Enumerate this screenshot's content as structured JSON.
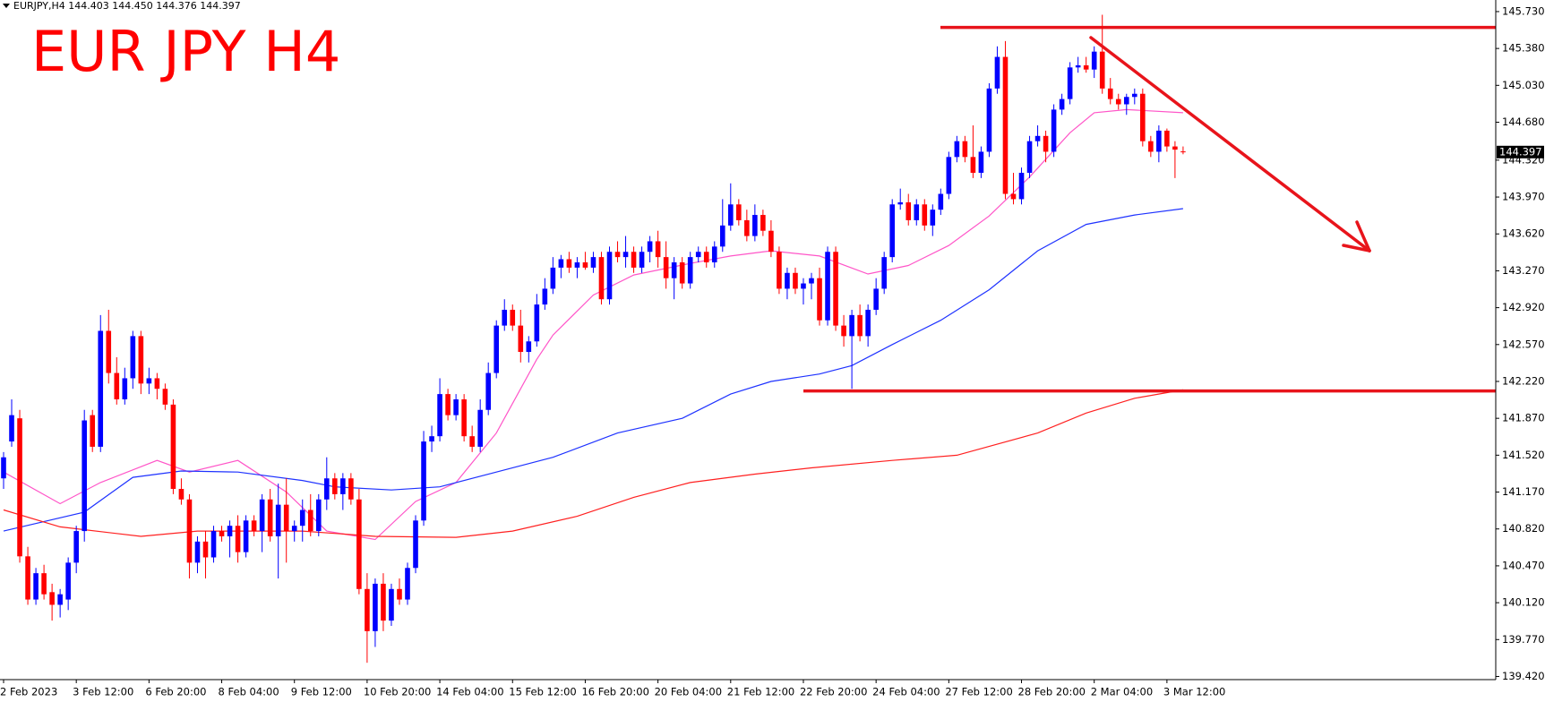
{
  "chart_data": {
    "type": "candlestick",
    "header": "EURJPY,H4  144.403 144.450 144.376 144.397",
    "title": "EUR JPY H4",
    "up_color": "#0000ff",
    "down_color": "#ff0000",
    "ylim": [
      139.39,
      145.84
    ],
    "yticks": [
      {
        "value": 145.73,
        "label": "145.730"
      },
      {
        "value": 145.38,
        "label": "145.380"
      },
      {
        "value": 145.03,
        "label": "145.030"
      },
      {
        "value": 144.68,
        "label": "144.680"
      },
      {
        "value": 144.32,
        "label": "144.320"
      },
      {
        "value": 143.97,
        "label": "143.970"
      },
      {
        "value": 143.62,
        "label": "143.620"
      },
      {
        "value": 143.27,
        "label": "143.270"
      },
      {
        "value": 142.92,
        "label": "142.920"
      },
      {
        "value": 142.57,
        "label": "142.570"
      },
      {
        "value": 142.22,
        "label": "142.220"
      },
      {
        "value": 141.87,
        "label": "141.870"
      },
      {
        "value": 141.52,
        "label": "141.520"
      },
      {
        "value": 141.17,
        "label": "141.170"
      },
      {
        "value": 140.82,
        "label": "140.820"
      },
      {
        "value": 140.47,
        "label": "140.470"
      },
      {
        "value": 140.12,
        "label": "140.120"
      },
      {
        "value": 139.77,
        "label": "139.770"
      },
      {
        "value": 139.42,
        "label": "139.420"
      }
    ],
    "price_label": {
      "value": 144.397,
      "label": "144.397"
    },
    "hlines": [
      {
        "value": 145.58,
        "color": "#e8141b"
      },
      {
        "value": 142.13,
        "color": "#e8141b"
      }
    ],
    "categories": [
      "2 Feb 2023",
      null,
      null,
      null,
      null,
      null,
      null,
      null,
      null,
      "3 Feb 12:00",
      null,
      null,
      null,
      null,
      null,
      null,
      null,
      null,
      "6 Feb 20:00",
      null,
      null,
      null,
      null,
      null,
      null,
      null,
      null,
      "8 Feb 04:00",
      null,
      null,
      null,
      null,
      null,
      null,
      null,
      null,
      "9 Feb 12:00",
      null,
      null,
      null,
      null,
      null,
      null,
      null,
      null,
      "10 Feb 20:00",
      null,
      null,
      null,
      null,
      null,
      null,
      null,
      null,
      "14 Feb 04:00",
      null,
      null,
      null,
      null,
      null,
      null,
      null,
      null,
      "15 Feb 12:00",
      null,
      null,
      null,
      null,
      null,
      null,
      null,
      null,
      "16 Feb 20:00",
      null,
      null,
      null,
      null,
      null,
      null,
      null,
      null,
      "20 Feb 04:00",
      null,
      null,
      null,
      null,
      null,
      null,
      null,
      null,
      "21 Feb 12:00",
      null,
      null,
      null,
      null,
      null,
      null,
      null,
      null,
      "22 Feb 20:00",
      null,
      null,
      null,
      null,
      null,
      null,
      null,
      null,
      "24 Feb 04:00",
      null,
      null,
      null,
      null,
      null,
      null,
      null,
      null,
      "27 Feb 12:00",
      null,
      null,
      null,
      null,
      null,
      null,
      null,
      null,
      "28 Feb 20:00",
      null,
      null,
      null,
      null,
      null,
      null,
      null,
      null,
      "2 Mar 04:00",
      null,
      null,
      null,
      null,
      null,
      null,
      null,
      null,
      "3 Mar 12:00",
      null,
      null
    ],
    "candles": [
      [
        141.3,
        141.55,
        141.2,
        141.5
      ],
      [
        141.65,
        142.05,
        141.6,
        141.9
      ],
      [
        141.87,
        141.95,
        140.5,
        140.56
      ],
      [
        140.56,
        140.65,
        140.1,
        140.15
      ],
      [
        140.15,
        140.45,
        140.1,
        140.4
      ],
      [
        140.4,
        140.48,
        140.15,
        140.2
      ],
      [
        140.22,
        140.3,
        139.95,
        140.1
      ],
      [
        140.1,
        140.25,
        139.98,
        140.2
      ],
      [
        140.15,
        140.55,
        140.05,
        140.5
      ],
      [
        140.5,
        140.85,
        140.4,
        140.8
      ],
      [
        140.8,
        141.95,
        140.7,
        141.85
      ],
      [
        141.9,
        141.95,
        141.55,
        141.6
      ],
      [
        141.6,
        142.85,
        141.55,
        142.7
      ],
      [
        142.7,
        142.9,
        142.2,
        142.3
      ],
      [
        142.3,
        142.45,
        142.0,
        142.05
      ],
      [
        142.05,
        142.35,
        142.0,
        142.25
      ],
      [
        142.25,
        142.7,
        142.15,
        142.65
      ],
      [
        142.65,
        142.7,
        142.1,
        142.2
      ],
      [
        142.2,
        142.35,
        142.1,
        142.25
      ],
      [
        142.25,
        142.3,
        142.05,
        142.15
      ],
      [
        142.15,
        142.2,
        141.95,
        142.0
      ],
      [
        142.0,
        142.05,
        141.15,
        141.2
      ],
      [
        141.2,
        141.3,
        141.05,
        141.1
      ],
      [
        141.1,
        141.15,
        140.35,
        140.5
      ],
      [
        140.5,
        140.75,
        140.4,
        140.7
      ],
      [
        140.7,
        140.8,
        140.35,
        140.55
      ],
      [
        140.55,
        140.85,
        140.5,
        140.8
      ],
      [
        140.8,
        140.85,
        140.7,
        140.75
      ],
      [
        140.75,
        140.9,
        140.55,
        140.85
      ],
      [
        140.85,
        140.95,
        140.5,
        140.6
      ],
      [
        140.6,
        140.95,
        140.55,
        140.9
      ],
      [
        140.9,
        140.95,
        140.75,
        140.8
      ],
      [
        140.8,
        141.15,
        140.6,
        141.1
      ],
      [
        141.1,
        141.2,
        140.7,
        140.75
      ],
      [
        140.75,
        141.25,
        140.35,
        141.05
      ],
      [
        141.05,
        141.3,
        140.5,
        140.8
      ],
      [
        140.8,
        140.9,
        140.7,
        140.85
      ],
      [
        140.85,
        141.1,
        140.7,
        141.0
      ],
      [
        141.0,
        141.15,
        140.75,
        140.8
      ],
      [
        140.8,
        141.15,
        140.75,
        141.1
      ],
      [
        141.1,
        141.5,
        141.0,
        141.3
      ],
      [
        141.3,
        141.35,
        141.1,
        141.15
      ],
      [
        141.15,
        141.35,
        141.0,
        141.3
      ],
      [
        141.3,
        141.35,
        141.05,
        141.1
      ],
      [
        141.1,
        141.2,
        140.2,
        140.25
      ],
      [
        140.25,
        140.4,
        139.55,
        139.85
      ],
      [
        139.85,
        140.35,
        139.7,
        140.3
      ],
      [
        140.3,
        140.4,
        139.85,
        139.95
      ],
      [
        139.95,
        140.3,
        139.9,
        140.25
      ],
      [
        140.25,
        140.35,
        140.1,
        140.15
      ],
      [
        140.15,
        140.5,
        140.1,
        140.45
      ],
      [
        140.45,
        140.95,
        140.4,
        140.9
      ],
      [
        140.9,
        141.75,
        140.85,
        141.65
      ],
      [
        141.65,
        141.8,
        141.55,
        141.7
      ],
      [
        141.7,
        142.25,
        141.65,
        142.1
      ],
      [
        142.1,
        142.15,
        141.85,
        141.9
      ],
      [
        141.9,
        142.1,
        141.85,
        142.05
      ],
      [
        142.05,
        142.1,
        141.65,
        141.7
      ],
      [
        141.7,
        141.8,
        141.55,
        141.6
      ],
      [
        141.6,
        142.05,
        141.55,
        141.95
      ],
      [
        141.95,
        142.4,
        141.9,
        142.3
      ],
      [
        142.3,
        142.8,
        142.25,
        142.75
      ],
      [
        142.75,
        143.0,
        142.7,
        142.9
      ],
      [
        142.9,
        142.95,
        142.7,
        142.75
      ],
      [
        142.75,
        142.9,
        142.4,
        142.5
      ],
      [
        142.5,
        142.65,
        142.4,
        142.6
      ],
      [
        142.6,
        143.05,
        142.55,
        142.95
      ],
      [
        142.95,
        143.2,
        142.9,
        143.1
      ],
      [
        143.1,
        143.4,
        143.05,
        143.3
      ],
      [
        143.3,
        143.42,
        143.2,
        143.38
      ],
      [
        143.38,
        143.45,
        143.25,
        143.3
      ],
      [
        143.3,
        143.4,
        143.2,
        143.35
      ],
      [
        143.35,
        143.45,
        143.28,
        143.3
      ],
      [
        143.3,
        143.45,
        143.25,
        143.4
      ],
      [
        143.4,
        143.45,
        142.95,
        143.0
      ],
      [
        143.0,
        143.5,
        142.95,
        143.45
      ],
      [
        143.45,
        143.55,
        143.35,
        143.4
      ],
      [
        143.4,
        143.6,
        143.3,
        143.45
      ],
      [
        143.45,
        143.5,
        143.25,
        143.3
      ],
      [
        143.3,
        143.5,
        143.25,
        143.45
      ],
      [
        143.45,
        143.6,
        143.35,
        143.55
      ],
      [
        143.55,
        143.65,
        143.3,
        143.4
      ],
      [
        143.4,
        143.55,
        143.1,
        143.2
      ],
      [
        143.2,
        143.4,
        143.0,
        143.35
      ],
      [
        143.35,
        143.4,
        143.1,
        143.15
      ],
      [
        143.15,
        143.45,
        143.1,
        143.4
      ],
      [
        143.4,
        143.5,
        143.35,
        143.45
      ],
      [
        143.45,
        143.5,
        143.3,
        143.35
      ],
      [
        143.35,
        143.55,
        143.3,
        143.5
      ],
      [
        143.5,
        143.95,
        143.45,
        143.7
      ],
      [
        143.7,
        144.1,
        143.65,
        143.9
      ],
      [
        143.9,
        143.95,
        143.7,
        143.75
      ],
      [
        143.75,
        143.85,
        143.55,
        143.6
      ],
      [
        143.6,
        143.9,
        143.55,
        143.8
      ],
      [
        143.8,
        143.85,
        143.6,
        143.65
      ],
      [
        143.65,
        143.75,
        143.4,
        143.45
      ],
      [
        143.45,
        143.5,
        143.05,
        143.1
      ],
      [
        143.1,
        143.3,
        143.0,
        143.25
      ],
      [
        143.25,
        143.3,
        143.05,
        143.1
      ],
      [
        143.1,
        143.2,
        142.95,
        143.15
      ],
      [
        143.15,
        143.25,
        143.0,
        143.2
      ],
      [
        143.2,
        143.3,
        142.75,
        142.8
      ],
      [
        142.8,
        143.5,
        142.75,
        143.45
      ],
      [
        143.45,
        143.5,
        142.7,
        142.75
      ],
      [
        142.75,
        142.85,
        142.55,
        142.65
      ],
      [
        142.65,
        142.9,
        142.15,
        142.85
      ],
      [
        142.85,
        142.95,
        142.6,
        142.65
      ],
      [
        142.65,
        142.95,
        142.55,
        142.9
      ],
      [
        142.9,
        143.2,
        142.85,
        143.1
      ],
      [
        143.1,
        143.45,
        143.05,
        143.4
      ],
      [
        143.4,
        143.95,
        143.35,
        143.9
      ],
      [
        143.9,
        144.05,
        143.85,
        143.92
      ],
      [
        143.92,
        144.0,
        143.7,
        143.75
      ],
      [
        143.75,
        143.95,
        143.7,
        143.9
      ],
      [
        143.9,
        143.95,
        143.65,
        143.7
      ],
      [
        143.7,
        143.9,
        143.6,
        143.85
      ],
      [
        143.85,
        144.05,
        143.8,
        144.0
      ],
      [
        144.0,
        144.4,
        143.95,
        144.35
      ],
      [
        144.35,
        144.55,
        144.3,
        144.5
      ],
      [
        144.5,
        144.55,
        144.3,
        144.35
      ],
      [
        144.35,
        144.65,
        144.15,
        144.2
      ],
      [
        144.2,
        144.45,
        144.15,
        144.4
      ],
      [
        144.4,
        145.05,
        144.35,
        145.0
      ],
      [
        145.0,
        145.4,
        144.95,
        145.3
      ],
      [
        145.3,
        145.45,
        143.95,
        144.0
      ],
      [
        144.0,
        144.2,
        143.9,
        143.95
      ],
      [
        143.95,
        144.25,
        143.9,
        144.2
      ],
      [
        144.2,
        144.55,
        144.15,
        144.5
      ],
      [
        144.5,
        144.65,
        144.45,
        144.55
      ],
      [
        144.55,
        144.6,
        144.3,
        144.4
      ],
      [
        144.4,
        144.85,
        144.35,
        144.8
      ],
      [
        144.8,
        144.95,
        144.75,
        144.9
      ],
      [
        144.9,
        145.25,
        144.85,
        145.2
      ],
      [
        145.2,
        145.3,
        145.15,
        145.22
      ],
      [
        145.22,
        145.3,
        145.15,
        145.18
      ],
      [
        145.18,
        145.4,
        145.1,
        145.35
      ],
      [
        145.35,
        145.7,
        144.95,
        145.0
      ],
      [
        145.0,
        145.1,
        144.85,
        144.9
      ],
      [
        144.9,
        144.95,
        144.8,
        144.85
      ],
      [
        144.85,
        144.95,
        144.75,
        144.92
      ],
      [
        144.92,
        145.0,
        144.85,
        144.95
      ],
      [
        144.95,
        145.0,
        144.45,
        144.5
      ],
      [
        144.5,
        144.55,
        144.35,
        144.4
      ],
      [
        144.4,
        144.65,
        144.3,
        144.6
      ],
      [
        144.6,
        144.62,
        144.4,
        144.45
      ],
      [
        144.45,
        144.5,
        144.15,
        144.42
      ],
      [
        144.403,
        144.45,
        144.376,
        144.397
      ]
    ],
    "series": [
      {
        "color": "#ff55c8",
        "x": [
          0,
          7,
          12,
          19,
          23,
          29,
          35,
          40,
          46,
          51,
          56,
          61,
          66,
          68,
          73,
          78,
          85,
          90,
          95,
          101,
          107,
          112,
          117,
          122,
          127,
          132,
          135,
          139,
          146
        ],
        "values": [
          141.36,
          141.06,
          141.26,
          141.47,
          141.36,
          141.47,
          141.17,
          140.8,
          140.72,
          141.08,
          141.26,
          141.73,
          142.43,
          142.66,
          143.04,
          143.23,
          143.34,
          143.41,
          143.46,
          143.41,
          143.24,
          143.32,
          143.51,
          143.79,
          144.16,
          144.58,
          144.77,
          144.8,
          144.77
        ]
      },
      {
        "color": "#1e32ff",
        "x": [
          0,
          10,
          16,
          22,
          29,
          37,
          41,
          48,
          54,
          61,
          68,
          76,
          84,
          90,
          95,
          101,
          105,
          110,
          116,
          122,
          128,
          134,
          140,
          146
        ],
        "values": [
          140.8,
          140.98,
          141.31,
          141.37,
          141.36,
          141.28,
          141.22,
          141.19,
          141.22,
          141.36,
          141.5,
          141.73,
          141.87,
          142.1,
          142.22,
          142.29,
          142.37,
          142.57,
          142.8,
          143.09,
          143.46,
          143.71,
          143.8,
          143.86
        ]
      },
      {
        "color": "#ff2020",
        "x": [
          0,
          7,
          17,
          24,
          37,
          46,
          56,
          63,
          71,
          78,
          85,
          93,
          100,
          110,
          118,
          128,
          134,
          140,
          146
        ],
        "values": [
          141.0,
          140.84,
          140.75,
          140.8,
          140.8,
          140.75,
          140.74,
          140.8,
          140.94,
          141.12,
          141.26,
          141.34,
          141.4,
          141.47,
          141.52,
          141.73,
          141.92,
          142.06,
          142.14
        ]
      }
    ]
  }
}
